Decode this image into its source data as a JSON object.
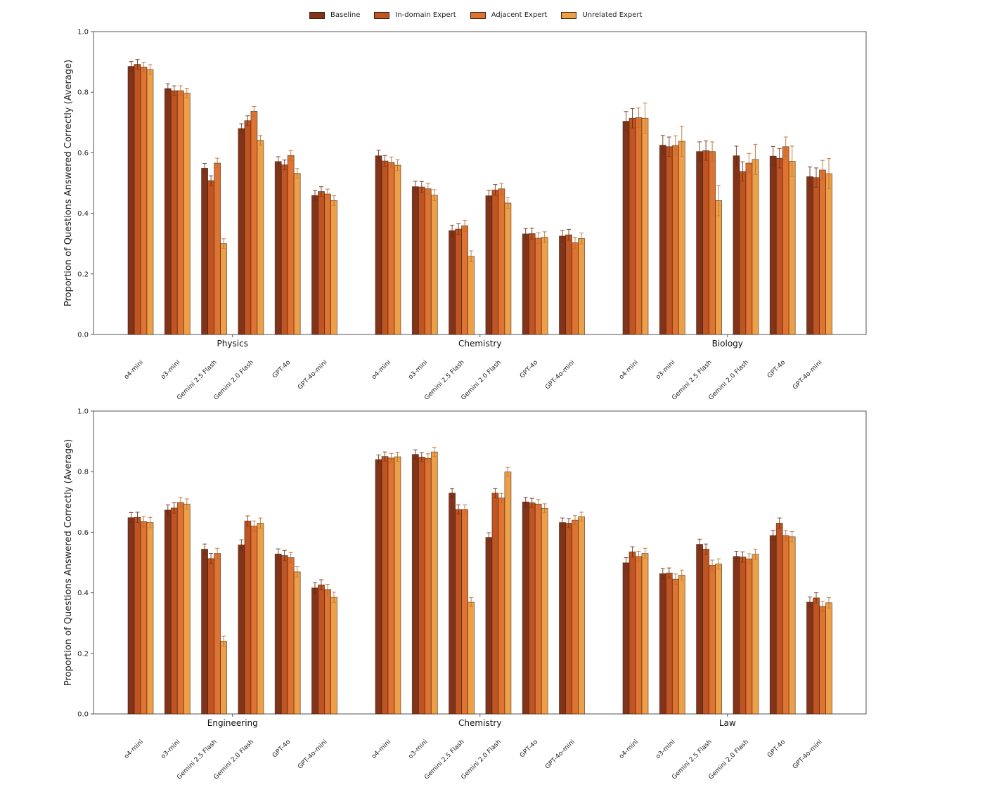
{
  "legend": {
    "items": [
      {
        "label": "Baseline",
        "color": "#82341a"
      },
      {
        "label": "In-domain Expert",
        "color": "#c05422"
      },
      {
        "label": "Adjacent Expert",
        "color": "#df7332"
      },
      {
        "label": "Unrelated Expert",
        "color": "#eea049"
      }
    ]
  },
  "chart_data": [
    {
      "type": "bar",
      "title": "",
      "ylabel": "Proportion of Questions Answered Correctly (Average)",
      "xlabel": "",
      "ylim": [
        0,
        1.0
      ],
      "yticks": [
        "0.0",
        "0.2",
        "0.4",
        "0.6",
        "0.8",
        "1.0"
      ],
      "series_names": [
        "Baseline",
        "In-domain Expert",
        "Adjacent Expert",
        "Unrelated Expert"
      ],
      "groups": [
        {
          "name": "Physics",
          "models": [
            "o4-mini",
            "o3-mini",
            "Gemini 2.5 Flash",
            "Gemini 2.0 Flash",
            "GPT-4o",
            "GPT-4o-mini"
          ],
          "values": [
            [
              0.885,
              0.892,
              0.883,
              0.875
            ],
            [
              0.812,
              0.805,
              0.805,
              0.797
            ],
            [
              0.549,
              0.508,
              0.566,
              0.3
            ],
            [
              0.68,
              0.706,
              0.737,
              0.641
            ],
            [
              0.571,
              0.56,
              0.591,
              0.532
            ],
            [
              0.459,
              0.472,
              0.464,
              0.442
            ]
          ],
          "errors": [
            0.016,
            0.016,
            0.016,
            0.016
          ]
        },
        {
          "name": "Chemistry",
          "models": [
            "o4-mini",
            "o3-mini",
            "Gemini 2.5 Flash",
            "Gemini 2.0 Flash",
            "GPT-4o",
            "GPT-4o-mini"
          ],
          "values": [
            [
              0.59,
              0.573,
              0.568,
              0.559
            ],
            [
              0.488,
              0.487,
              0.481,
              0.46
            ],
            [
              0.343,
              0.348,
              0.359,
              0.258
            ],
            [
              0.458,
              0.477,
              0.481,
              0.434
            ],
            [
              0.332,
              0.333,
              0.318,
              0.321
            ],
            [
              0.325,
              0.329,
              0.303,
              0.317
            ]
          ],
          "errors": [
            0.018,
            0.018,
            0.018,
            0.018
          ]
        },
        {
          "name": "Biology",
          "models": [
            "o4-mini",
            "o3-mini",
            "Gemini 2.5 Flash",
            "Gemini 2.0 Flash",
            "GPT-4o",
            "GPT-4o-mini"
          ],
          "values": [
            [
              0.704,
              0.714,
              0.716,
              0.714
            ],
            [
              0.625,
              0.62,
              0.624,
              0.638
            ],
            [
              0.604,
              0.607,
              0.604,
              0.442
            ],
            [
              0.59,
              0.538,
              0.566,
              0.578
            ],
            [
              0.589,
              0.582,
              0.62,
              0.572
            ],
            [
              0.521,
              0.518,
              0.543,
              0.531
            ]
          ],
          "errors": [
            0.032,
            0.032,
            0.032,
            0.05
          ]
        }
      ]
    },
    {
      "type": "bar",
      "title": "",
      "ylabel": "Proportion of Questions Answered Correctly (Average)",
      "xlabel": "",
      "ylim": [
        0,
        1.0
      ],
      "yticks": [
        "0.0",
        "0.2",
        "0.4",
        "0.6",
        "0.8",
        "1.0"
      ],
      "series_names": [
        "Baseline",
        "In-domain Expert",
        "Adjacent Expert",
        "Unrelated Expert"
      ],
      "groups": [
        {
          "name": "Engineering",
          "models": [
            "o4-mini",
            "o3-mini",
            "Gemini 2.5 Flash",
            "Gemini 2.0 Flash",
            "GPT-4o",
            "GPT-4o-mini"
          ],
          "values": [
            [
              0.648,
              0.649,
              0.635,
              0.632
            ],
            [
              0.673,
              0.68,
              0.698,
              0.693
            ],
            [
              0.544,
              0.513,
              0.53,
              0.24
            ],
            [
              0.558,
              0.637,
              0.62,
              0.63
            ],
            [
              0.528,
              0.523,
              0.516,
              0.469
            ],
            [
              0.416,
              0.426,
              0.411,
              0.385
            ]
          ],
          "errors": [
            0.017,
            0.017,
            0.017,
            0.017
          ]
        },
        {
          "name": "Chemistry",
          "models": [
            "o4-mini",
            "o3-mini",
            "Gemini 2.5 Flash",
            "Gemini 2.0 Flash",
            "GPT-4o",
            "GPT-4o-mini"
          ],
          "values": [
            [
              0.84,
              0.85,
              0.845,
              0.849
            ],
            [
              0.857,
              0.848,
              0.844,
              0.865
            ],
            [
              0.729,
              0.675,
              0.675,
              0.369
            ],
            [
              0.583,
              0.729,
              0.713,
              0.799
            ],
            [
              0.7,
              0.697,
              0.693,
              0.679
            ],
            [
              0.632,
              0.63,
              0.64,
              0.651
            ]
          ],
          "errors": [
            0.015,
            0.015,
            0.015,
            0.015
          ]
        },
        {
          "name": "Law",
          "models": [
            "o4-mini",
            "o3-mini",
            "Gemini 2.5 Flash",
            "Gemini 2.0 Flash",
            "GPT-4o",
            "GPT-4o-mini"
          ],
          "values": [
            [
              0.499,
              0.535,
              0.52,
              0.53
            ],
            [
              0.463,
              0.465,
              0.445,
              0.458
            ],
            [
              0.56,
              0.544,
              0.491,
              0.495
            ],
            [
              0.52,
              0.518,
              0.512,
              0.527
            ],
            [
              0.589,
              0.63,
              0.589,
              0.585
            ],
            [
              0.369,
              0.383,
              0.355,
              0.367
            ]
          ],
          "errors": [
            0.017,
            0.017,
            0.017,
            0.017
          ]
        }
      ]
    }
  ]
}
